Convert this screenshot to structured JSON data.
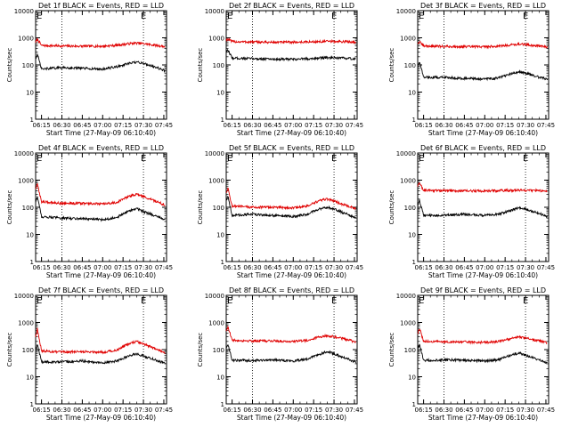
{
  "figure": {
    "background": "#ffffff",
    "axis_color": "#000000",
    "events_color": "#000000",
    "lld_color": "#e00000"
  },
  "chart_data": [
    {
      "type": "line",
      "title": "Det 1f BLACK = Events, RED = LLD",
      "xlabel": "Start Time (27-May-09 06:10:40)",
      "ylabel": "Counts/sec",
      "xticks": [
        "06:15",
        "06:30",
        "06:45",
        "07:00",
        "07:15",
        "07:30",
        "07:45"
      ],
      "yticks": [
        "1",
        "10",
        "100",
        "1000",
        "10000"
      ],
      "ylim": [
        1,
        10000
      ],
      "y_scale": "log",
      "markers": [
        "E",
        "E"
      ],
      "series": [
        {
          "name": "LLD",
          "x": [
            "06:10",
            "06:12",
            "06:15",
            "06:30",
            "06:45",
            "07:00",
            "07:10",
            "07:20",
            "07:25",
            "07:30",
            "07:40",
            "07:46"
          ],
          "y": [
            600,
            900,
            520,
            500,
            490,
            490,
            530,
            610,
            640,
            610,
            520,
            470
          ]
        },
        {
          "name": "Events",
          "x": [
            "06:10",
            "06:12",
            "06:15",
            "06:30",
            "06:45",
            "07:00",
            "07:10",
            "07:20",
            "07:25",
            "07:30",
            "07:40",
            "07:46"
          ],
          "y": [
            150,
            240,
            70,
            80,
            75,
            70,
            85,
            115,
            125,
            115,
            80,
            60
          ]
        }
      ]
    },
    {
      "type": "line",
      "title": "Det 2f BLACK = Events, RED = LLD",
      "xlabel": "Start Time (27-May-09 06:10:40)",
      "ylabel": "Counts/sec",
      "xticks": [
        "06:15",
        "06:30",
        "06:45",
        "07:00",
        "07:15",
        "07:30",
        "07:45"
      ],
      "yticks": [
        "1",
        "10",
        "100",
        "1000",
        "10000"
      ],
      "ylim": [
        1,
        10000
      ],
      "y_scale": "log",
      "markers": [
        "E",
        "E"
      ],
      "series": [
        {
          "name": "LLD",
          "x": [
            "06:10",
            "06:12",
            "06:15",
            "06:30",
            "06:45",
            "07:00",
            "07:10",
            "07:20",
            "07:25",
            "07:30",
            "07:40",
            "07:46"
          ],
          "y": [
            800,
            900,
            720,
            700,
            680,
            690,
            700,
            720,
            740,
            730,
            720,
            700
          ]
        },
        {
          "name": "Events",
          "x": [
            "06:10",
            "06:12",
            "06:15",
            "06:30",
            "06:45",
            "07:00",
            "07:10",
            "07:20",
            "07:25",
            "07:30",
            "07:40",
            "07:46"
          ],
          "y": [
            250,
            350,
            180,
            170,
            165,
            160,
            170,
            180,
            185,
            180,
            175,
            165
          ]
        }
      ]
    },
    {
      "type": "line",
      "title": "Det 3f BLACK = Events, RED = LLD",
      "xlabel": "Start Time (27-May-09 06:10:40)",
      "ylabel": "Counts/sec",
      "xticks": [
        "06:15",
        "06:30",
        "06:45",
        "07:00",
        "07:15",
        "07:30",
        "07:45"
      ],
      "yticks": [
        "1",
        "10",
        "100",
        "1000",
        "10000"
      ],
      "ylim": [
        1,
        10000
      ],
      "y_scale": "log",
      "markers": [
        "E",
        "E"
      ],
      "series": [
        {
          "name": "LLD",
          "x": [
            "06:10",
            "06:12",
            "06:15",
            "06:30",
            "06:45",
            "07:00",
            "07:10",
            "07:20",
            "07:25",
            "07:30",
            "07:40",
            "07:46"
          ],
          "y": [
            600,
            700,
            500,
            480,
            470,
            470,
            490,
            560,
            590,
            560,
            500,
            450
          ]
        },
        {
          "name": "Events",
          "x": [
            "06:10",
            "06:12",
            "06:15",
            "06:30",
            "06:45",
            "07:00",
            "07:10",
            "07:20",
            "07:25",
            "07:30",
            "07:40",
            "07:46"
          ],
          "y": [
            80,
            130,
            35,
            35,
            32,
            30,
            33,
            48,
            55,
            50,
            35,
            30
          ]
        }
      ]
    },
    {
      "type": "line",
      "title": "Det 4f BLACK = Events, RED = LLD",
      "xlabel": "Start Time (27-May-09 06:10:40)",
      "ylabel": "Counts/sec",
      "xticks": [
        "06:15",
        "06:30",
        "06:45",
        "07:00",
        "07:15",
        "07:30",
        "07:45"
      ],
      "yticks": [
        "1",
        "10",
        "100",
        "1000",
        "10000"
      ],
      "ylim": [
        1,
        10000
      ],
      "y_scale": "log",
      "markers": [
        "E",
        "E"
      ],
      "series": [
        {
          "name": "LLD",
          "x": [
            "06:10",
            "06:12",
            "06:15",
            "06:30",
            "06:45",
            "07:00",
            "07:10",
            "07:20",
            "07:25",
            "07:30",
            "07:40",
            "07:46"
          ],
          "y": [
            400,
            700,
            160,
            140,
            140,
            130,
            150,
            260,
            300,
            250,
            160,
            120
          ]
        },
        {
          "name": "Events",
          "x": [
            "06:10",
            "06:12",
            "06:15",
            "06:30",
            "06:45",
            "07:00",
            "07:10",
            "07:20",
            "07:25",
            "07:30",
            "07:40",
            "07:46"
          ],
          "y": [
            120,
            250,
            45,
            40,
            38,
            35,
            42,
            75,
            90,
            70,
            45,
            35
          ]
        }
      ]
    },
    {
      "type": "line",
      "title": "Det 5f BLACK = Events, RED = LLD",
      "xlabel": "Start Time (27-May-09 06:10:40)",
      "ylabel": "Counts/sec",
      "xticks": [
        "06:15",
        "06:30",
        "06:45",
        "07:00",
        "07:15",
        "07:30",
        "07:45"
      ],
      "yticks": [
        "1",
        "10",
        "100",
        "1000",
        "10000"
      ],
      "ylim": [
        1,
        10000
      ],
      "y_scale": "log",
      "markers": [
        "E",
        "E"
      ],
      "series": [
        {
          "name": "LLD",
          "x": [
            "06:10",
            "06:12",
            "06:15",
            "06:30",
            "06:45",
            "07:00",
            "07:10",
            "07:20",
            "07:25",
            "07:30",
            "07:40",
            "07:46"
          ],
          "y": [
            300,
            500,
            110,
            100,
            100,
            95,
            110,
            180,
            200,
            170,
            110,
            90
          ]
        },
        {
          "name": "Events",
          "x": [
            "06:10",
            "06:12",
            "06:15",
            "06:30",
            "06:45",
            "07:00",
            "07:10",
            "07:20",
            "07:25",
            "07:30",
            "07:40",
            "07:46"
          ],
          "y": [
            150,
            260,
            50,
            55,
            50,
            45,
            55,
            90,
            100,
            85,
            55,
            40
          ]
        }
      ]
    },
    {
      "type": "line",
      "title": "Det 6f BLACK = Events, RED = LLD",
      "xlabel": "Start Time (27-May-09 06:10:40)",
      "ylabel": "Counts/sec",
      "xticks": [
        "06:15",
        "06:30",
        "06:45",
        "07:00",
        "07:15",
        "07:30",
        "07:45"
      ],
      "yticks": [
        "1",
        "10",
        "100",
        "1000",
        "10000"
      ],
      "ylim": [
        1,
        10000
      ],
      "y_scale": "log",
      "markers": [
        "E",
        "E"
      ],
      "series": [
        {
          "name": "LLD",
          "x": [
            "06:10",
            "06:12",
            "06:15",
            "06:30",
            "06:45",
            "07:00",
            "07:10",
            "07:20",
            "07:25",
            "07:30",
            "07:40",
            "07:46"
          ],
          "y": [
            500,
            800,
            420,
            410,
            400,
            400,
            410,
            420,
            430,
            420,
            410,
            400
          ]
        },
        {
          "name": "Events",
          "x": [
            "06:10",
            "06:12",
            "06:15",
            "06:30",
            "06:45",
            "07:00",
            "07:10",
            "07:20",
            "07:25",
            "07:30",
            "07:40",
            "07:46"
          ],
          "y": [
            100,
            180,
            50,
            50,
            55,
            50,
            55,
            80,
            95,
            85,
            60,
            45
          ]
        }
      ]
    },
    {
      "type": "line",
      "title": "Det 7f BLACK = Events, RED = LLD",
      "xlabel": "Start Time (27-May-09 06:10:40)",
      "ylabel": "Counts/sec",
      "xticks": [
        "06:15",
        "06:30",
        "06:45",
        "07:00",
        "07:15",
        "07:30",
        "07:45"
      ],
      "yticks": [
        "1",
        "10",
        "100",
        "1000",
        "10000"
      ],
      "ylim": [
        1,
        10000
      ],
      "y_scale": "log",
      "markers": [
        "E",
        "E"
      ],
      "series": [
        {
          "name": "LLD",
          "x": [
            "06:10",
            "06:12",
            "06:15",
            "06:30",
            "06:45",
            "07:00",
            "07:10",
            "07:20",
            "07:25",
            "07:30",
            "07:40",
            "07:46"
          ],
          "y": [
            200,
            600,
            90,
            80,
            85,
            80,
            95,
            170,
            200,
            160,
            100,
            75
          ]
        },
        {
          "name": "Events",
          "x": [
            "06:10",
            "06:12",
            "06:15",
            "06:30",
            "06:45",
            "07:00",
            "07:10",
            "07:20",
            "07:25",
            "07:30",
            "07:40",
            "07:46"
          ],
          "y": [
            80,
            150,
            35,
            35,
            38,
            32,
            38,
            60,
            70,
            58,
            40,
            30
          ]
        }
      ]
    },
    {
      "type": "line",
      "title": "Det 8f BLACK = Events, RED = LLD",
      "xlabel": "Start Time (27-May-09 06:10:40)",
      "ylabel": "Counts/sec",
      "xticks": [
        "06:15",
        "06:30",
        "06:45",
        "07:00",
        "07:15",
        "07:30",
        "07:45"
      ],
      "yticks": [
        "1",
        "10",
        "100",
        "1000",
        "10000"
      ],
      "ylim": [
        1,
        10000
      ],
      "y_scale": "log",
      "markers": [
        "E",
        "E"
      ],
      "series": [
        {
          "name": "LLD",
          "x": [
            "06:10",
            "06:12",
            "06:15",
            "06:30",
            "06:45",
            "07:00",
            "07:10",
            "07:20",
            "07:25",
            "07:30",
            "07:40",
            "07:46"
          ],
          "y": [
            400,
            700,
            220,
            210,
            210,
            200,
            220,
            300,
            330,
            300,
            230,
            190
          ]
        },
        {
          "name": "Events",
          "x": [
            "06:10",
            "06:12",
            "06:15",
            "06:30",
            "06:45",
            "07:00",
            "07:10",
            "07:20",
            "07:25",
            "07:30",
            "07:40",
            "07:46"
          ],
          "y": [
            90,
            160,
            40,
            40,
            42,
            38,
            45,
            70,
            85,
            70,
            45,
            35
          ]
        }
      ]
    },
    {
      "type": "line",
      "title": "Det 9f BLACK = Events, RED = LLD",
      "xlabel": "Start Time (27-May-09 06:10:40)",
      "ylabel": "Counts/sec",
      "xticks": [
        "06:15",
        "06:30",
        "06:45",
        "07:00",
        "07:15",
        "07:30",
        "07:45"
      ],
      "yticks": [
        "1",
        "10",
        "100",
        "1000",
        "10000"
      ],
      "ylim": [
        1,
        10000
      ],
      "y_scale": "log",
      "markers": [
        "E",
        "E"
      ],
      "series": [
        {
          "name": "LLD",
          "x": [
            "06:10",
            "06:12",
            "06:15",
            "06:30",
            "06:45",
            "07:00",
            "07:10",
            "07:20",
            "07:25",
            "07:30",
            "07:40",
            "07:46"
          ],
          "y": [
            300,
            600,
            200,
            195,
            190,
            185,
            200,
            260,
            290,
            260,
            210,
            180
          ]
        },
        {
          "name": "Events",
          "x": [
            "06:10",
            "06:12",
            "06:15",
            "06:30",
            "06:45",
            "07:00",
            "07:10",
            "07:20",
            "07:25",
            "07:30",
            "07:40",
            "07:46"
          ],
          "y": [
            90,
            150,
            40,
            42,
            40,
            38,
            42,
            65,
            75,
            62,
            42,
            33
          ]
        }
      ]
    }
  ]
}
